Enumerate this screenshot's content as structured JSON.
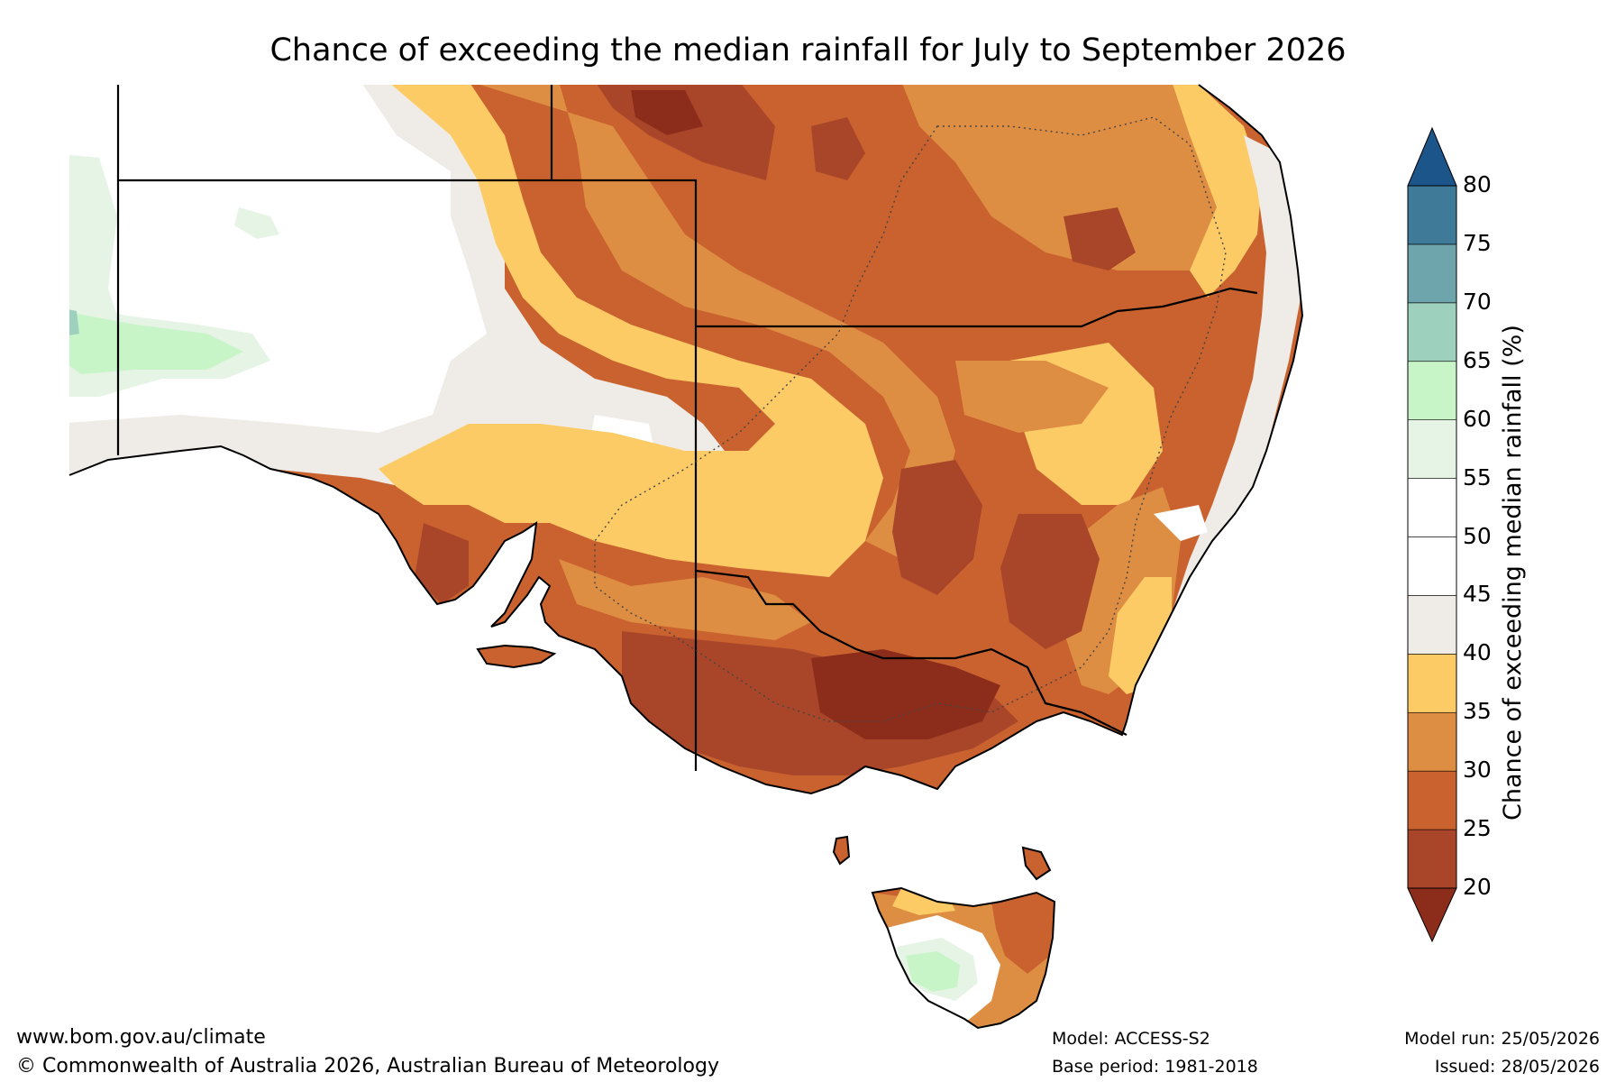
{
  "title": "Chance of exceeding the median rainfall for July to September 2026",
  "colorbar": {
    "label": "Chance of exceeding median rainfall (%)",
    "ticks": [
      "20",
      "25",
      "30",
      "35",
      "40",
      "45",
      "50",
      "55",
      "60",
      "65",
      "70",
      "75",
      "80"
    ],
    "bins": [
      {
        "range": "20-25",
        "color": "#a9462a"
      },
      {
        "range": "25-30",
        "color": "#c9622e"
      },
      {
        "range": "30-35",
        "color": "#de8e43"
      },
      {
        "range": "35-40",
        "color": "#fccb66"
      },
      {
        "range": "40-45",
        "color": "#efebe6"
      },
      {
        "range": "45-50",
        "color": "#ffffff"
      },
      {
        "range": "50-55",
        "color": "#ffffff"
      },
      {
        "range": "55-60",
        "color": "#e6f4e6"
      },
      {
        "range": "60-65",
        "color": "#c8f5c8"
      },
      {
        "range": "65-70",
        "color": "#9ed1bd"
      },
      {
        "range": "70-75",
        "color": "#6ea4ab"
      },
      {
        "range": "75-80",
        "color": "#3f7a99"
      }
    ],
    "under_color": "#8c2d1c",
    "over_color": "#1b5589"
  },
  "footer": {
    "website": "www.bom.gov.au/climate",
    "copyright": "© Commonwealth of Australia 2026, Australian Bureau of Meteorology",
    "model": "Model: ACCESS-S2",
    "base_period": "Base period: 1981-2018",
    "model_run": "Model run: 25/05/2026",
    "issued": "Issued: 28/05/2026"
  }
}
